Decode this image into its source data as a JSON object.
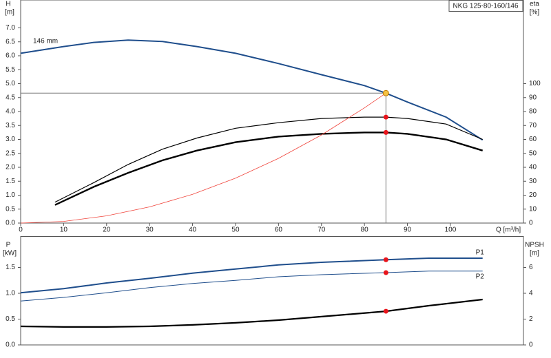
{
  "chart_data": [
    {
      "type": "line",
      "title": "NKG 125-80-160/146",
      "annotation": "146 mm",
      "y_label": "H",
      "y_unit": "[m]",
      "y2_label": "eta",
      "y2_unit": "[%]",
      "x_label": "Q [m³/h]",
      "xlim": [
        0,
        117
      ],
      "xticks": [
        0,
        10,
        20,
        30,
        40,
        50,
        60,
        70,
        80,
        90,
        100
      ],
      "ylim": [
        0,
        8
      ],
      "yticks": [
        {
          "value": 0,
          "label": "0.0"
        },
        {
          "value": 0.5,
          "label": "0.5"
        },
        {
          "value": 1,
          "label": "1.0"
        },
        {
          "value": 1.5,
          "label": "1.5"
        },
        {
          "value": 2,
          "label": "2.0"
        },
        {
          "value": 2.5,
          "label": "2.5"
        },
        {
          "value": 3,
          "label": "3.0"
        },
        {
          "value": 3.5,
          "label": "3.5"
        },
        {
          "value": 4,
          "label": "4.0"
        },
        {
          "value": 4.5,
          "label": "4.5"
        },
        {
          "value": 5,
          "label": "5.0"
        },
        {
          "value": 5.5,
          "label": "5.5"
        },
        {
          "value": 6,
          "label": "6.0"
        },
        {
          "value": 6.5,
          "label": "6.5"
        },
        {
          "value": 7,
          "label": "7.0"
        }
      ],
      "y2lim": [
        0,
        160
      ],
      "y2ticks": [
        0,
        10,
        20,
        30,
        40,
        50,
        60,
        70,
        80,
        90,
        100
      ],
      "duty_point": {
        "x": 85,
        "y": 4.66,
        "color": "#f5c242"
      },
      "series": [
        {
          "color": "#1f4e8c",
          "line_width": 2,
          "x": [
            0,
            10,
            17,
            25,
            33,
            41,
            50,
            60,
            70,
            80,
            85,
            90,
            99,
            107.5
          ],
          "values": [
            6.09,
            6.33,
            6.48,
            6.56,
            6.51,
            6.33,
            6.09,
            5.72,
            5.32,
            4.93,
            4.66,
            4.34,
            3.8,
            2.98
          ]
        },
        {
          "color": "#000000",
          "line_width": 1.2,
          "axis": "y2",
          "marker_color": "#e8141b",
          "x": [
            8,
            17,
            25,
            33,
            41,
            50,
            60,
            70,
            80,
            85,
            90,
            99,
            107.5
          ],
          "values": [
            15,
            29,
            42,
            53,
            61,
            68,
            72,
            75,
            76,
            76,
            75,
            71,
            60
          ]
        },
        {
          "color": "#000000",
          "line_width": 2.4,
          "axis": "y2",
          "marker_color": "#e8141b",
          "x": [
            8,
            17,
            25,
            33,
            41,
            50,
            60,
            70,
            80,
            85,
            90,
            99,
            107.5
          ],
          "values": [
            13,
            26,
            36,
            45,
            52,
            58,
            62,
            64,
            65,
            65,
            64,
            60,
            52
          ]
        },
        {
          "color": "#f0433a",
          "line_width": 0.8,
          "x": [
            0,
            10,
            20,
            30,
            40,
            50,
            60,
            70,
            80,
            85
          ],
          "values": [
            0,
            0.06,
            0.26,
            0.58,
            1.03,
            1.61,
            2.32,
            3.16,
            4.13,
            4.66
          ]
        }
      ]
    },
    {
      "type": "line",
      "y_label": "P",
      "y_unit": "[kW]",
      "y2_label": "NPSH",
      "y2_unit": "[m]",
      "xlim": [
        0,
        117
      ],
      "ylim": [
        0,
        2.1
      ],
      "yticks": [
        {
          "value": 0,
          "label": "0.0"
        },
        {
          "value": 0.5,
          "label": "0.5"
        },
        {
          "value": 1,
          "label": "1.0"
        },
        {
          "value": 1.5,
          "label": "1.5"
        }
      ],
      "y2lim": [
        0,
        8.4
      ],
      "y2ticks": [
        0,
        2,
        4,
        6
      ],
      "series": [
        {
          "name": "P1",
          "color": "#1f4e8c",
          "line_width": 2,
          "marker_color": "#e8141b",
          "x": [
            0,
            10,
            20,
            30,
            40,
            50,
            60,
            70,
            85,
            95,
            107.5
          ],
          "values": [
            1.01,
            1.09,
            1.2,
            1.29,
            1.39,
            1.47,
            1.55,
            1.6,
            1.65,
            1.68,
            1.68
          ]
        },
        {
          "name": "P2",
          "color": "#1f4e8c",
          "line_width": 1,
          "marker_color": "#e8141b",
          "x": [
            0,
            10,
            20,
            30,
            40,
            50,
            60,
            70,
            85,
            95,
            107.5
          ],
          "values": [
            0.85,
            0.92,
            1.01,
            1.11,
            1.19,
            1.25,
            1.32,
            1.36,
            1.4,
            1.43,
            1.43
          ]
        },
        {
          "color": "#000000",
          "line_width": 2.2,
          "axis": "y2",
          "marker_color": "#e8141b",
          "x": [
            0,
            10,
            20,
            30,
            40,
            50,
            60,
            70,
            85,
            95,
            107.5
          ],
          "values": [
            1.44,
            1.39,
            1.39,
            1.44,
            1.55,
            1.71,
            1.92,
            2.19,
            2.61,
            3.04,
            3.52
          ]
        }
      ]
    }
  ]
}
